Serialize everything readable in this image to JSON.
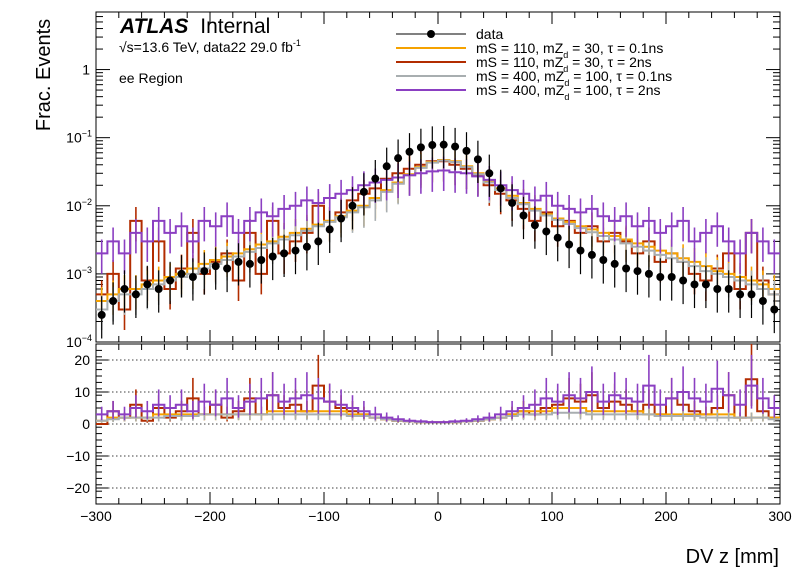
{
  "chart_data": {
    "type": "line",
    "experiment_label": "ATLAS",
    "status_label": "Internal",
    "energy_label": "√s=13.6 TeV, data22 29.0 fb",
    "energy_label_sup": "-1",
    "region_label": "ee Region",
    "xlabel": "DV z [mm]",
    "ylabel": "Frac. Events",
    "xlim": [
      -300,
      300
    ],
    "xticks": [
      -300,
      -200,
      -100,
      0,
      100,
      200,
      300
    ],
    "xtick_labels": [
      "−300",
      "−200",
      "−100",
      "0",
      "100",
      "200",
      "300"
    ],
    "top_panel": {
      "yscale": "log",
      "ylim": [
        0.0001,
        7
      ],
      "yticks": [
        {
          "value": 1,
          "base": "1",
          "exp": ""
        },
        {
          "value": 0.1,
          "base": "10",
          "exp": "−1"
        },
        {
          "value": 0.01,
          "base": "10",
          "exp": "−2"
        },
        {
          "value": 0.001,
          "base": "10",
          "exp": "−3"
        },
        {
          "value": 0.0001,
          "base": "10",
          "exp": "−4"
        }
      ]
    },
    "ratio_panel": {
      "ylim": [
        -25,
        25
      ],
      "yticks": [
        -20,
        -10,
        0,
        10,
        20
      ],
      "ytick_labels": [
        "−20",
        "−10",
        "0",
        "10",
        "20"
      ],
      "gridlines": [
        -20,
        -10,
        0,
        10,
        20
      ]
    },
    "legend": [
      {
        "name": "data",
        "style": "marker"
      },
      {
        "name": "mS = 110, mZ",
        "sub": "d",
        "rest": " = 30, τ = 0.1ns",
        "style": "line"
      },
      {
        "name": "mS = 110, mZ",
        "sub": "d",
        "rest": " = 30, τ = 2ns",
        "style": "line"
      },
      {
        "name": "mS = 400, mZ",
        "sub": "d",
        "rest": " = 100, τ = 0.1ns",
        "style": "line"
      },
      {
        "name": "mS = 400, mZ",
        "sub": "d",
        "rest": " = 100, τ = 2ns",
        "style": "line"
      }
    ],
    "legend_placement": "top-right",
    "series": [
      {
        "name": "mS = 110, mZd = 30, τ = 2ns",
        "color": "#b22c00",
        "bin_edges": [
          -300,
          -290,
          -280,
          -270,
          -260,
          -250,
          -240,
          -230,
          -220,
          -210,
          -200,
          -190,
          -180,
          -170,
          -160,
          -150,
          -140,
          -130,
          -120,
          -110,
          -100,
          -90,
          -80,
          -70,
          -60,
          -50,
          -40,
          -30,
          -20,
          -10,
          0,
          10,
          20,
          30,
          40,
          50,
          60,
          70,
          80,
          90,
          100,
          110,
          120,
          130,
          140,
          150,
          160,
          170,
          180,
          190,
          200,
          210,
          220,
          230,
          240,
          250,
          260,
          270,
          280,
          290,
          300
        ],
        "values": [
          0.0005,
          0.001,
          0.0003,
          0.006,
          0.0008,
          0.003,
          0.0006,
          0.0012,
          0.004,
          0.001,
          0.0015,
          0.002,
          0.0008,
          0.004,
          0.001,
          0.006,
          0.002,
          0.003,
          0.004,
          0.01,
          0.006,
          0.008,
          0.012,
          0.015,
          0.018,
          0.025,
          0.03,
          0.035,
          0.04,
          0.045,
          0.045,
          0.04,
          0.035,
          0.028,
          0.02,
          0.015,
          0.012,
          0.009,
          0.006,
          0.008,
          0.005,
          0.006,
          0.004,
          0.005,
          0.003,
          0.004,
          0.003,
          0.002,
          0.003,
          0.0015,
          0.002,
          0.0015,
          0.001,
          0.0008,
          0.0012,
          0.002,
          0.0006,
          0.004,
          0.0008,
          0.0005
        ],
        "ratio": [
          0,
          4,
          2,
          6,
          1,
          5,
          2,
          4,
          8,
          3,
          6,
          2,
          4,
          8,
          3,
          9,
          5,
          6,
          4,
          12,
          7,
          5,
          4,
          3,
          2,
          1.5,
          1,
          0.8,
          0.6,
          0.5,
          0.5,
          0.6,
          0.8,
          1,
          1.5,
          2,
          3,
          4,
          3,
          5,
          6,
          8,
          7,
          9,
          5,
          7,
          6,
          4,
          6,
          3,
          8,
          6,
          4,
          3,
          5,
          9,
          2,
          14,
          4,
          2
        ]
      },
      {
        "name": "mS = 110, mZd = 30, τ = 0.1ns",
        "color": "#f5a200",
        "bin_edges": [
          -300,
          -290,
          -280,
          -270,
          -260,
          -250,
          -240,
          -230,
          -220,
          -210,
          -200,
          -190,
          -180,
          -170,
          -160,
          -150,
          -140,
          -130,
          -120,
          -110,
          -100,
          -90,
          -80,
          -70,
          -60,
          -50,
          -40,
          -30,
          -20,
          -10,
          0,
          10,
          20,
          30,
          40,
          50,
          60,
          70,
          80,
          90,
          100,
          110,
          120,
          130,
          140,
          150,
          160,
          170,
          180,
          190,
          200,
          210,
          220,
          230,
          240,
          250,
          260,
          270,
          280,
          290,
          300
        ],
        "values": [
          0.0004,
          0.0005,
          0.0006,
          0.0006,
          0.0007,
          0.0008,
          0.0009,
          0.001,
          0.0012,
          0.0014,
          0.0016,
          0.0018,
          0.002,
          0.0023,
          0.0027,
          0.003,
          0.0035,
          0.004,
          0.0046,
          0.0053,
          0.006,
          0.007,
          0.0085,
          0.01,
          0.013,
          0.017,
          0.022,
          0.029,
          0.037,
          0.044,
          0.047,
          0.045,
          0.038,
          0.03,
          0.023,
          0.018,
          0.014,
          0.011,
          0.009,
          0.0075,
          0.0065,
          0.0058,
          0.005,
          0.0045,
          0.004,
          0.0036,
          0.0032,
          0.0028,
          0.0025,
          0.0022,
          0.002,
          0.0017,
          0.0015,
          0.0013,
          0.0011,
          0.001,
          0.0009,
          0.0008,
          0.0007,
          0.0006
        ],
        "ratio": [
          1,
          2,
          2,
          2,
          2,
          3,
          3,
          3,
          3,
          3,
          3,
          3,
          3,
          3,
          3,
          4,
          4,
          4,
          4,
          4,
          4,
          4,
          3,
          3,
          2,
          1.5,
          1,
          0.8,
          0.6,
          0.5,
          0.5,
          0.6,
          0.8,
          1,
          1.5,
          2,
          3,
          4,
          4,
          4,
          5,
          5,
          5,
          4,
          4,
          4,
          4,
          4,
          3,
          3,
          3,
          3,
          3,
          3,
          3,
          3,
          2,
          2,
          2,
          2
        ]
      },
      {
        "name": "mS = 400, mZd = 100, τ = 0.1ns",
        "color": "#a8aeb0",
        "bin_edges": [
          -300,
          -290,
          -280,
          -270,
          -260,
          -250,
          -240,
          -230,
          -220,
          -210,
          -200,
          -190,
          -180,
          -170,
          -160,
          -150,
          -140,
          -130,
          -120,
          -110,
          -100,
          -90,
          -80,
          -70,
          -60,
          -50,
          -40,
          -30,
          -20,
          -10,
          0,
          10,
          20,
          30,
          40,
          50,
          60,
          70,
          80,
          90,
          100,
          110,
          120,
          130,
          140,
          150,
          160,
          170,
          180,
          190,
          200,
          210,
          220,
          230,
          240,
          250,
          260,
          270,
          280,
          290,
          300
        ],
        "values": [
          0.0003,
          0.0004,
          0.0005,
          0.0005,
          0.0006,
          0.0007,
          0.0008,
          0.0009,
          0.001,
          0.0012,
          0.0014,
          0.0016,
          0.0018,
          0.0021,
          0.0024,
          0.0028,
          0.0032,
          0.0037,
          0.0043,
          0.005,
          0.0058,
          0.0068,
          0.008,
          0.0095,
          0.012,
          0.016,
          0.021,
          0.028,
          0.036,
          0.043,
          0.046,
          0.044,
          0.037,
          0.029,
          0.022,
          0.017,
          0.013,
          0.0105,
          0.0085,
          0.0072,
          0.0062,
          0.0054,
          0.0047,
          0.0041,
          0.0036,
          0.0032,
          0.0028,
          0.0025,
          0.0022,
          0.0019,
          0.0017,
          0.0015,
          0.0013,
          0.0011,
          0.001,
          0.0009,
          0.0008,
          0.0007,
          0.0006,
          0.0005
        ],
        "ratio": [
          1,
          1.5,
          2,
          2,
          2,
          2,
          2.5,
          2.5,
          2.5,
          3,
          3,
          3,
          3,
          3,
          3,
          3,
          3,
          3,
          3,
          3,
          3,
          3,
          2.5,
          2.5,
          2,
          1.5,
          1,
          0.8,
          0.6,
          0.5,
          0.5,
          0.6,
          0.8,
          1,
          1.5,
          2,
          2.5,
          3,
          3,
          3,
          3.5,
          3.5,
          3.5,
          3,
          3,
          3,
          3,
          3,
          3,
          2.5,
          2.5,
          2.5,
          2.5,
          2,
          2,
          2,
          2,
          2,
          2,
          1.5
        ]
      },
      {
        "name": "mS = 400, mZd = 100, τ = 2ns",
        "color": "#8b3fc2",
        "bin_edges": [
          -300,
          -290,
          -280,
          -270,
          -260,
          -250,
          -240,
          -230,
          -220,
          -210,
          -200,
          -190,
          -180,
          -170,
          -160,
          -150,
          -140,
          -130,
          -120,
          -110,
          -100,
          -90,
          -80,
          -70,
          -60,
          -50,
          -40,
          -30,
          -20,
          -10,
          0,
          10,
          20,
          30,
          40,
          50,
          60,
          70,
          80,
          90,
          100,
          110,
          120,
          130,
          140,
          150,
          160,
          170,
          180,
          190,
          200,
          210,
          220,
          230,
          240,
          250,
          260,
          270,
          280,
          290,
          300
        ],
        "values": [
          0.002,
          0.003,
          0.002,
          0.004,
          0.003,
          0.006,
          0.004,
          0.005,
          0.003,
          0.006,
          0.005,
          0.007,
          0.004,
          0.006,
          0.008,
          0.007,
          0.009,
          0.01,
          0.012,
          0.011,
          0.013,
          0.015,
          0.017,
          0.02,
          0.022,
          0.024,
          0.026,
          0.028,
          0.03,
          0.032,
          0.033,
          0.031,
          0.03,
          0.027,
          0.024,
          0.02,
          0.017,
          0.015,
          0.012,
          0.014,
          0.01,
          0.009,
          0.008,
          0.009,
          0.007,
          0.006,
          0.007,
          0.005,
          0.006,
          0.004,
          0.005,
          0.006,
          0.003,
          0.004,
          0.005,
          0.003,
          0.002,
          0.004,
          0.003,
          0.002
        ],
        "ratio": [
          3,
          4,
          3,
          5,
          4,
          6,
          5,
          6,
          4,
          7,
          6,
          8,
          5,
          7,
          8,
          9,
          7,
          8,
          9,
          8,
          7,
          6,
          5,
          4,
          3,
          2,
          1.5,
          1,
          0.8,
          0.6,
          0.6,
          0.8,
          1,
          1.5,
          2,
          3,
          4,
          5,
          6,
          8,
          7,
          9,
          8,
          10,
          7,
          9,
          8,
          7,
          12,
          6,
          8,
          10,
          8,
          7,
          11,
          9,
          6,
          12,
          8,
          5
        ]
      }
    ],
    "data_points": {
      "name": "data",
      "color": "#000000",
      "x": [
        -295,
        -285,
        -275,
        -265,
        -255,
        -245,
        -235,
        -225,
        -215,
        -205,
        -195,
        -185,
        -175,
        -165,
        -155,
        -145,
        -135,
        -125,
        -115,
        -105,
        -95,
        -85,
        -75,
        -65,
        -55,
        -45,
        -35,
        -25,
        -15,
        -5,
        5,
        15,
        25,
        35,
        45,
        55,
        65,
        75,
        85,
        95,
        105,
        115,
        125,
        135,
        145,
        155,
        165,
        175,
        185,
        195,
        205,
        215,
        225,
        235,
        245,
        255,
        265,
        275,
        285,
        295
      ],
      "y": [
        0.00025,
        0.0004,
        0.0006,
        0.0005,
        0.0007,
        0.0006,
        0.0008,
        0.001,
        0.0009,
        0.0011,
        0.0013,
        0.0012,
        0.0015,
        0.0014,
        0.0016,
        0.0018,
        0.002,
        0.0022,
        0.0025,
        0.003,
        0.0045,
        0.0065,
        0.01,
        0.016,
        0.025,
        0.038,
        0.05,
        0.062,
        0.072,
        0.078,
        0.079,
        0.074,
        0.064,
        0.048,
        0.03,
        0.018,
        0.011,
        0.0072,
        0.0052,
        0.0042,
        0.0034,
        0.0027,
        0.0022,
        0.0019,
        0.0016,
        0.0014,
        0.0012,
        0.0011,
        0.001,
        0.0009,
        0.0009,
        0.0008,
        0.0007,
        0.0007,
        0.0006,
        0.0006,
        0.0005,
        0.0005,
        0.0004,
        0.0003
      ],
      "yerr_frac": 0.55
    }
  }
}
